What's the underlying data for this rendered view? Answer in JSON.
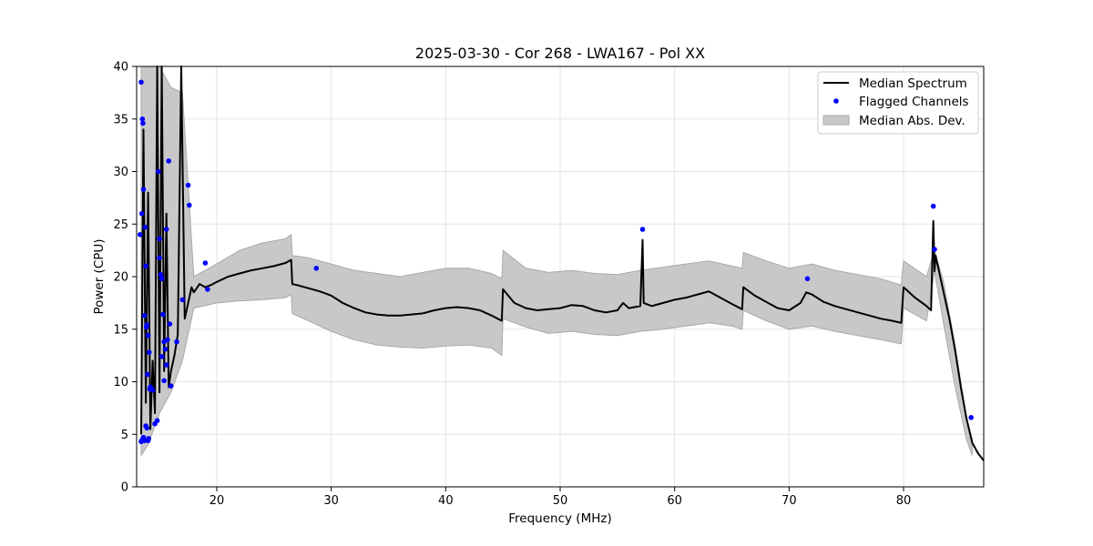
{
  "chart_data": {
    "type": "line",
    "title": "2025-03-30 - Cor 268 - LWA167 - Pol XX",
    "xlabel": "Frequency (MHz)",
    "ylabel": "Power (CPU)",
    "xlim": [
      13,
      87
    ],
    "ylim": [
      0,
      40
    ],
    "xticks": [
      "20",
      "30",
      "40",
      "50",
      "60",
      "70",
      "80"
    ],
    "yticks": [
      "0",
      "5",
      "10",
      "15",
      "20",
      "25",
      "30",
      "35",
      "40"
    ],
    "grid": true,
    "legend_position": "top-right",
    "colors": {
      "median": "#000000",
      "flagged": "#0000ff",
      "band_fill": "#c8c8c8",
      "band_edge": "#a9a9a9",
      "grid": "#e3e3e3"
    },
    "series": [
      {
        "name": "Median Spectrum",
        "kind": "line",
        "x": [
          13.4,
          13.6,
          13.8,
          14.0,
          14.2,
          14.4,
          14.6,
          14.8,
          15.0,
          15.2,
          15.4,
          15.6,
          15.8,
          16.0,
          16.3,
          16.6,
          16.9,
          17.2,
          17.5,
          17.8,
          18.0,
          18.5,
          19.0,
          19.5,
          20.0,
          21.0,
          22.0,
          23.0,
          24.0,
          25.0,
          26.0,
          26.5,
          26.6,
          27.0,
          28.0,
          29.0,
          30.0,
          31.0,
          32.0,
          33.0,
          34.0,
          35.0,
          36.0,
          37.0,
          38.0,
          39.0,
          40.0,
          41.0,
          42.0,
          43.0,
          44.0,
          44.9,
          45.0,
          46.0,
          47.0,
          48.0,
          49.0,
          50.0,
          51.0,
          52.0,
          53.0,
          54.0,
          55.0,
          55.5,
          56.0,
          57.0,
          57.2,
          57.3,
          58.0,
          59.0,
          60.0,
          61.0,
          62.0,
          63.0,
          64.0,
          65.0,
          65.9,
          66.0,
          67.0,
          68.0,
          69.0,
          70.0,
          71.0,
          71.5,
          72.0,
          73.0,
          74.0,
          75.0,
          76.0,
          77.0,
          78.0,
          79.0,
          79.8,
          80.0,
          81.0,
          82.0,
          82.4,
          82.6,
          82.7,
          82.8,
          83.0,
          83.5,
          84.0,
          84.5,
          85.0,
          85.5,
          86.0,
          86.5,
          87.0
        ],
        "y": [
          5.0,
          34.0,
          8.0,
          28.0,
          5.5,
          12.0,
          7.0,
          40.0,
          9.0,
          40.0,
          11.0,
          26.0,
          9.5,
          11.0,
          12.5,
          14.5,
          40.0,
          16.0,
          17.5,
          19.0,
          18.5,
          19.3,
          19.0,
          19.2,
          19.5,
          20.0,
          20.3,
          20.6,
          20.8,
          21.0,
          21.3,
          21.6,
          19.3,
          19.2,
          18.9,
          18.6,
          18.2,
          17.5,
          17.0,
          16.6,
          16.4,
          16.3,
          16.3,
          16.4,
          16.5,
          16.8,
          17.0,
          17.1,
          17.0,
          16.8,
          16.3,
          15.8,
          18.8,
          17.5,
          17.0,
          16.8,
          16.9,
          17.0,
          17.3,
          17.2,
          16.8,
          16.6,
          16.8,
          17.5,
          17.0,
          17.2,
          23.5,
          17.5,
          17.2,
          17.5,
          17.8,
          18.0,
          18.3,
          18.6,
          18.0,
          17.4,
          16.9,
          19.0,
          18.2,
          17.6,
          17.0,
          16.8,
          17.5,
          18.5,
          18.3,
          17.6,
          17.2,
          16.9,
          16.6,
          16.3,
          16.0,
          15.8,
          15.6,
          19.0,
          18.0,
          17.2,
          16.8,
          25.3,
          20.5,
          22.0,
          21.0,
          18.5,
          16.0,
          13.0,
          9.5,
          6.5,
          4.2,
          3.2,
          2.5
        ]
      },
      {
        "name": "Flagged Channels",
        "kind": "scatter",
        "x": [
          13.3,
          13.4,
          13.5,
          13.6,
          13.7,
          13.8,
          13.9,
          14.0,
          14.1,
          14.2,
          13.4,
          13.5,
          13.6,
          13.7,
          13.8,
          13.9,
          14.0,
          13.45,
          13.55,
          13.75,
          13.85,
          13.95,
          14.05,
          14.15,
          14.4,
          14.6,
          14.8,
          14.9,
          15.0,
          15.1,
          15.2,
          15.3,
          15.4,
          15.5,
          15.6,
          15.7,
          15.8,
          15.0,
          15.2,
          15.4,
          15.6,
          15.9,
          16.0,
          16.5,
          17.0,
          17.5,
          17.6,
          19.0,
          19.2,
          28.7,
          57.2,
          71.6,
          82.6,
          82.7,
          85.9
        ],
        "y": [
          24.0,
          38.5,
          35.0,
          28.3,
          16.3,
          21.0,
          15.4,
          14.4,
          12.8,
          9.5,
          4.3,
          4.5,
          4.7,
          4.4,
          5.8,
          5.6,
          4.4,
          26.0,
          34.6,
          24.7,
          15.2,
          10.7,
          4.6,
          9.3,
          9.2,
          6.0,
          6.3,
          30.0,
          23.6,
          20.2,
          19.8,
          16.4,
          13.8,
          13.1,
          11.6,
          14.0,
          31.0,
          21.8,
          12.4,
          10.1,
          24.5,
          15.5,
          9.6,
          13.8,
          17.8,
          28.7,
          26.8,
          21.3,
          18.8,
          20.8,
          24.5,
          19.8,
          26.7,
          22.6,
          6.6
        ]
      },
      {
        "name": "Median Abs. Dev.",
        "kind": "band",
        "x": [
          13.4,
          14.0,
          15.0,
          16.0,
          17.0,
          18.0,
          20.0,
          22.0,
          24.0,
          26.0,
          26.5,
          26.6,
          28.0,
          30.0,
          32.0,
          34.0,
          36.0,
          38.0,
          40.0,
          42.0,
          44.0,
          44.9,
          45.0,
          47.0,
          49.0,
          51.0,
          53.0,
          55.0,
          57.0,
          59.0,
          61.0,
          63.0,
          65.0,
          65.9,
          66.0,
          68.0,
          70.0,
          72.0,
          74.0,
          76.0,
          78.0,
          79.8,
          80.0,
          82.0,
          82.7,
          83.5,
          84.5,
          85.5,
          86.0
        ],
        "lower": [
          3.0,
          4.0,
          7.0,
          9.0,
          12.0,
          17.0,
          17.5,
          17.7,
          17.8,
          18.0,
          18.3,
          16.5,
          15.8,
          14.8,
          14.0,
          13.5,
          13.3,
          13.2,
          13.4,
          13.5,
          13.2,
          12.5,
          16.0,
          15.2,
          14.6,
          14.8,
          14.5,
          14.4,
          14.8,
          15.0,
          15.3,
          15.6,
          15.3,
          15.0,
          16.8,
          15.8,
          15.0,
          15.3,
          14.8,
          14.4,
          14.0,
          13.6,
          17.0,
          15.8,
          20.5,
          15.5,
          9.5,
          4.5,
          3.0
        ],
        "upper": [
          40.0,
          40.0,
          40.0,
          38.0,
          37.5,
          20.0,
          21.2,
          22.5,
          23.2,
          23.6,
          24.0,
          22.0,
          21.8,
          21.2,
          20.6,
          20.3,
          20.0,
          20.4,
          20.8,
          20.8,
          20.3,
          19.8,
          22.5,
          20.8,
          20.4,
          20.6,
          20.3,
          20.2,
          20.6,
          20.9,
          21.2,
          21.5,
          21.0,
          20.8,
          22.3,
          21.5,
          20.8,
          21.2,
          20.6,
          20.2,
          19.8,
          19.2,
          21.5,
          20.0,
          22.5,
          19.5,
          13.5,
          6.5,
          4.5
        ]
      }
    ]
  }
}
